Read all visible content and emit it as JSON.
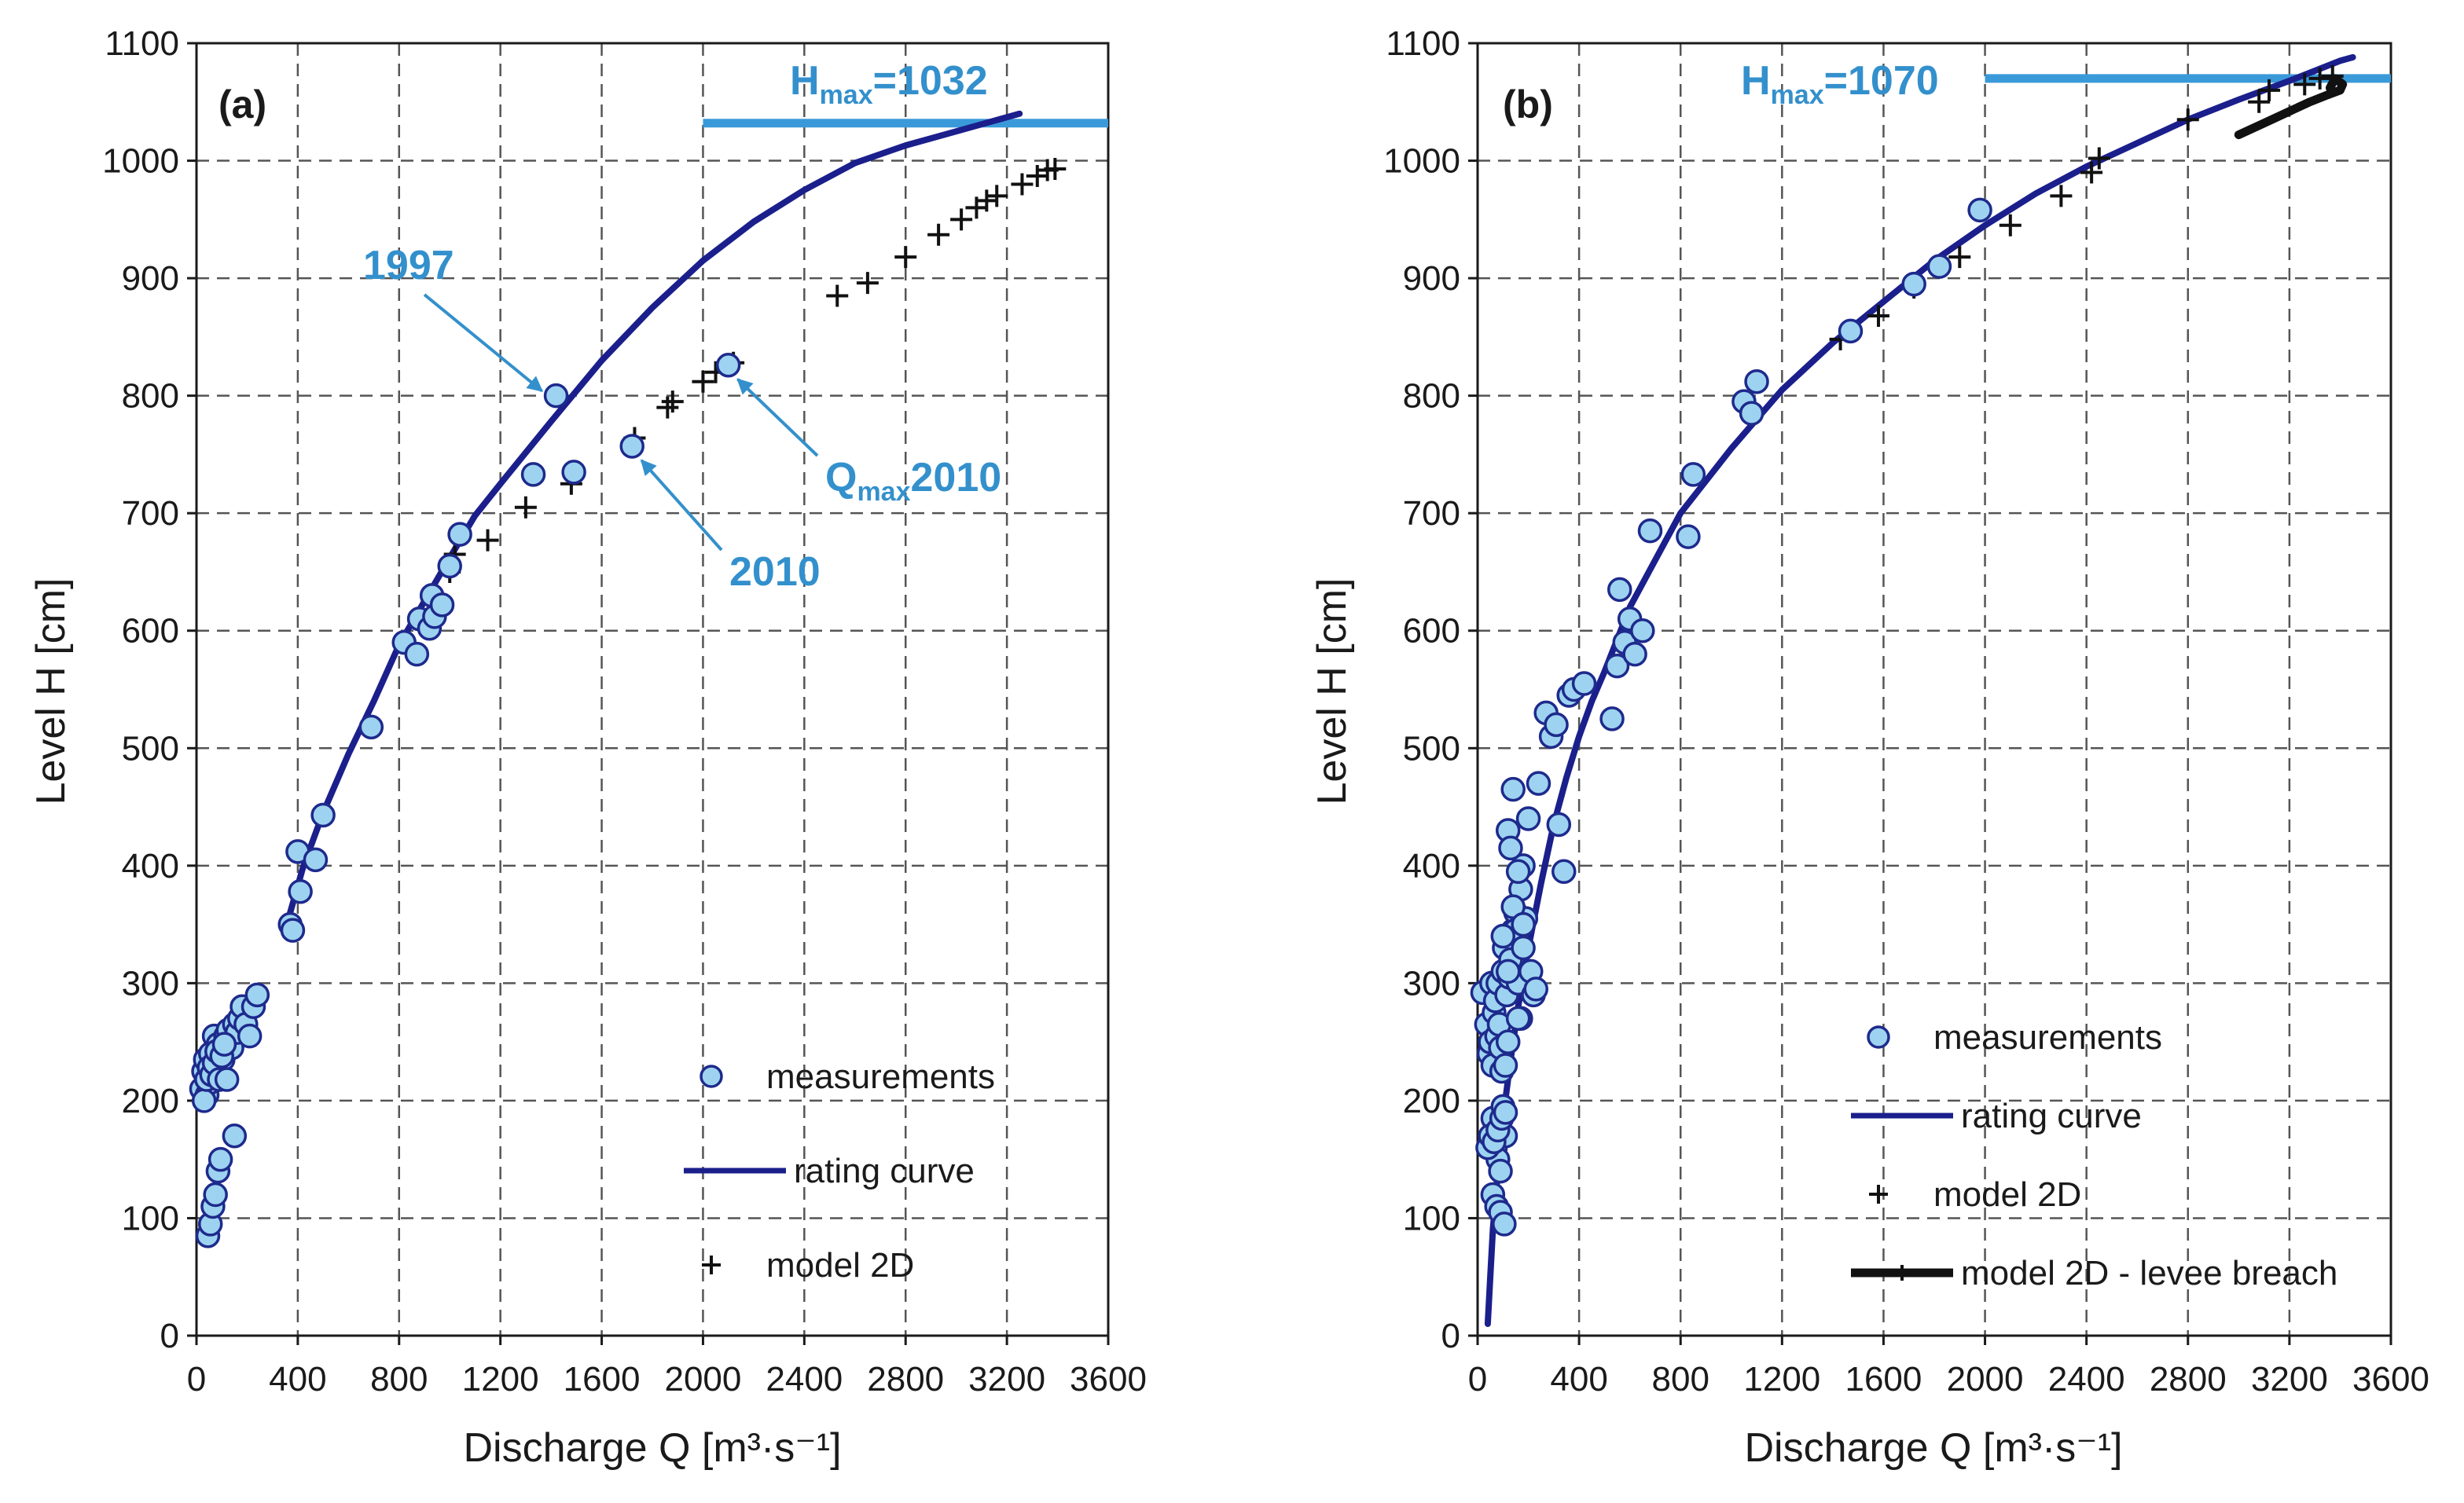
{
  "colors": {
    "measurement_fill": "#9dd3f0",
    "measurement_stroke": "#1e2a8c",
    "rating_curve": "#1b1f8c",
    "model_marker": "#111111",
    "hmax_line": "#3a9ad9",
    "annotation": "#3390cc",
    "grid": "#555555"
  },
  "chart_data": [
    {
      "type": "scatter",
      "panel_label": "(a)",
      "xlabel": "Discharge Q [m³·s⁻¹]",
      "ylabel": "Level H [cm]",
      "xlim": [
        0,
        3600
      ],
      "ylim": [
        0,
        1100
      ],
      "x_ticks": [
        0,
        400,
        800,
        1200,
        1600,
        2000,
        2400,
        2800,
        3200,
        3600
      ],
      "y_ticks": [
        0,
        100,
        200,
        300,
        400,
        500,
        600,
        700,
        800,
        900,
        1000,
        1100
      ],
      "grid": true,
      "legend_position": "bottom-right",
      "legend": [
        "measurements",
        "rating curve",
        "model 2D"
      ],
      "hmax": {
        "text_main": "H",
        "text_sub": "max",
        "text_value": "=1032",
        "value": 1032,
        "x_from": 2000,
        "x_to": 3600
      },
      "annotations": [
        {
          "text": "1997",
          "x": 1420,
          "y": 800
        },
        {
          "text": "2010",
          "x": 1720,
          "y": 757
        },
        {
          "text_main": "Q",
          "text_sub": "max",
          "text_value": "2010",
          "x": 2100,
          "y": 826
        }
      ],
      "series": [
        {
          "name": "measurements",
          "kind": "circle",
          "x": [
            20,
            28,
            35,
            42,
            50,
            55,
            62,
            70,
            78,
            85,
            95,
            105,
            115,
            125,
            140,
            150,
            160,
            170,
            180,
            195,
            210,
            225,
            240,
            45,
            55,
            65,
            75,
            85,
            95,
            30,
            40,
            50,
            60,
            70,
            80,
            90,
            100,
            110,
            370,
            380,
            400,
            410,
            470,
            500,
            690,
            820,
            870,
            880,
            920,
            930,
            940,
            970,
            1000,
            1040,
            1330,
            1490,
            1420,
            1720,
            2100,
            120,
            150
          ],
          "y": [
            210,
            225,
            235,
            205,
            215,
            240,
            225,
            255,
            230,
            248,
            240,
            235,
            255,
            260,
            245,
            265,
            258,
            270,
            280,
            265,
            255,
            280,
            290,
            85,
            95,
            110,
            120,
            140,
            150,
            200,
            218,
            228,
            222,
            232,
            242,
            218,
            238,
            248,
            350,
            345,
            412,
            378,
            405,
            443,
            518,
            590,
            580,
            610,
            602,
            630,
            612,
            622,
            655,
            682,
            733,
            735,
            800,
            757,
            826,
            218,
            170
          ]
        },
        {
          "name": "rating curve",
          "kind": "line",
          "x": [
            350,
            420,
            500,
            600,
            700,
            800,
            900,
            1000,
            1100,
            1200,
            1400,
            1600,
            1800,
            2000,
            2200,
            2400,
            2600,
            2800,
            3000,
            3200,
            3250
          ],
          "y": [
            345,
            398,
            445,
            495,
            540,
            588,
            625,
            662,
            698,
            725,
            778,
            830,
            875,
            915,
            948,
            975,
            998,
            1013,
            1025,
            1037,
            1040
          ]
        },
        {
          "name": "model 2D",
          "kind": "plus",
          "x": [
            1000,
            1020,
            1150,
            1300,
            1480,
            1730,
            1860,
            1880,
            2000,
            2050,
            2120,
            2530,
            2650,
            2800,
            2930,
            3020,
            3080,
            3120,
            3160,
            3260,
            3320,
            3360,
            3390
          ],
          "y": [
            650,
            665,
            677,
            705,
            725,
            764,
            790,
            795,
            812,
            820,
            828,
            885,
            896,
            918,
            937,
            950,
            960,
            966,
            970,
            980,
            987,
            992,
            993
          ]
        }
      ]
    },
    {
      "type": "scatter",
      "panel_label": "(b)",
      "xlabel": "Discharge Q [m³·s⁻¹]",
      "ylabel": "Level H [cm]",
      "xlim": [
        0,
        3600
      ],
      "ylim": [
        0,
        1100
      ],
      "x_ticks": [
        0,
        400,
        800,
        1200,
        1600,
        2000,
        2400,
        2800,
        3200,
        3600
      ],
      "y_ticks": [
        0,
        100,
        200,
        300,
        400,
        500,
        600,
        700,
        800,
        900,
        1000,
        1100
      ],
      "grid": true,
      "legend_position": "bottom-right",
      "legend": [
        "measurements",
        "rating curve",
        "model 2D",
        "model 2D - levee breach"
      ],
      "hmax": {
        "text_main": "H",
        "text_sub": "max",
        "text_value": "=1070",
        "value": 1070,
        "x_from": 2000,
        "x_to": 3600
      },
      "annotations": [],
      "series": [
        {
          "name": "measurements",
          "kind": "circle",
          "x": [
            20,
            35,
            45,
            50,
            55,
            60,
            65,
            70,
            75,
            80,
            85,
            90,
            95,
            100,
            105,
            110,
            115,
            120,
            125,
            130,
            140,
            150,
            160,
            170,
            180,
            190,
            200,
            210,
            220,
            230,
            60,
            70,
            80,
            90,
            100,
            110,
            120,
            130,
            140,
            150,
            160,
            170,
            180,
            60,
            75,
            90,
            105,
            40,
            50,
            65,
            80,
            95,
            110,
            100,
            120,
            140,
            160,
            180,
            240,
            270,
            290,
            310,
            320,
            340,
            360,
            380,
            420,
            530,
            550,
            560,
            580,
            600,
            620,
            650,
            680,
            830,
            850,
            1050,
            1080,
            1100,
            1470,
            1720,
            1820,
            1980
          ],
          "y": [
            292,
            265,
            240,
            250,
            300,
            230,
            275,
            285,
            255,
            300,
            265,
            245,
            225,
            310,
            330,
            230,
            290,
            250,
            305,
            320,
            345,
            360,
            300,
            380,
            400,
            355,
            440,
            310,
            290,
            295,
            185,
            160,
            150,
            140,
            195,
            170,
            430,
            415,
            465,
            345,
            395,
            270,
            330,
            120,
            110,
            105,
            95,
            160,
            170,
            165,
            175,
            185,
            190,
            340,
            310,
            365,
            270,
            350,
            470,
            530,
            510,
            520,
            435,
            395,
            545,
            550,
            555,
            525,
            570,
            635,
            590,
            610,
            580,
            600,
            685,
            680,
            733,
            795,
            785,
            812,
            855,
            895,
            910,
            958
          ]
        },
        {
          "name": "rating curve",
          "kind": "line",
          "x": [
            40,
            50,
            60,
            80,
            100,
            130,
            160,
            200,
            250,
            300,
            350,
            400,
            450,
            500,
            600,
            700,
            800,
            1000,
            1200,
            1400,
            1600,
            1800,
            2000,
            2200,
            2400,
            2600,
            2800,
            3000,
            3200,
            3400,
            3450
          ],
          "y": [
            10,
            50,
            90,
            140,
            185,
            235,
            280,
            330,
            385,
            435,
            475,
            510,
            540,
            565,
            620,
            660,
            700,
            755,
            805,
            845,
            880,
            915,
            945,
            972,
            995,
            1015,
            1035,
            1052,
            1068,
            1085,
            1088
          ]
        },
        {
          "name": "model 2D",
          "kind": "plus",
          "x": [
            1430,
            1580,
            1720,
            1900,
            2100,
            2300,
            2420,
            2450,
            2800,
            3080,
            3120,
            3260,
            3320,
            3370
          ],
          "y": [
            848,
            868,
            892,
            918,
            945,
            970,
            990,
            1002,
            1035,
            1050,
            1060,
            1065,
            1070,
            1072
          ]
        },
        {
          "name": "model 2D - levee breach",
          "kind": "thick-line",
          "x": [
            3000,
            3100,
            3200,
            3280,
            3350,
            3400,
            3410,
            3380,
            3360
          ],
          "y": [
            1022,
            1032,
            1042,
            1050,
            1056,
            1060,
            1065,
            1070,
            1062
          ]
        }
      ]
    }
  ]
}
